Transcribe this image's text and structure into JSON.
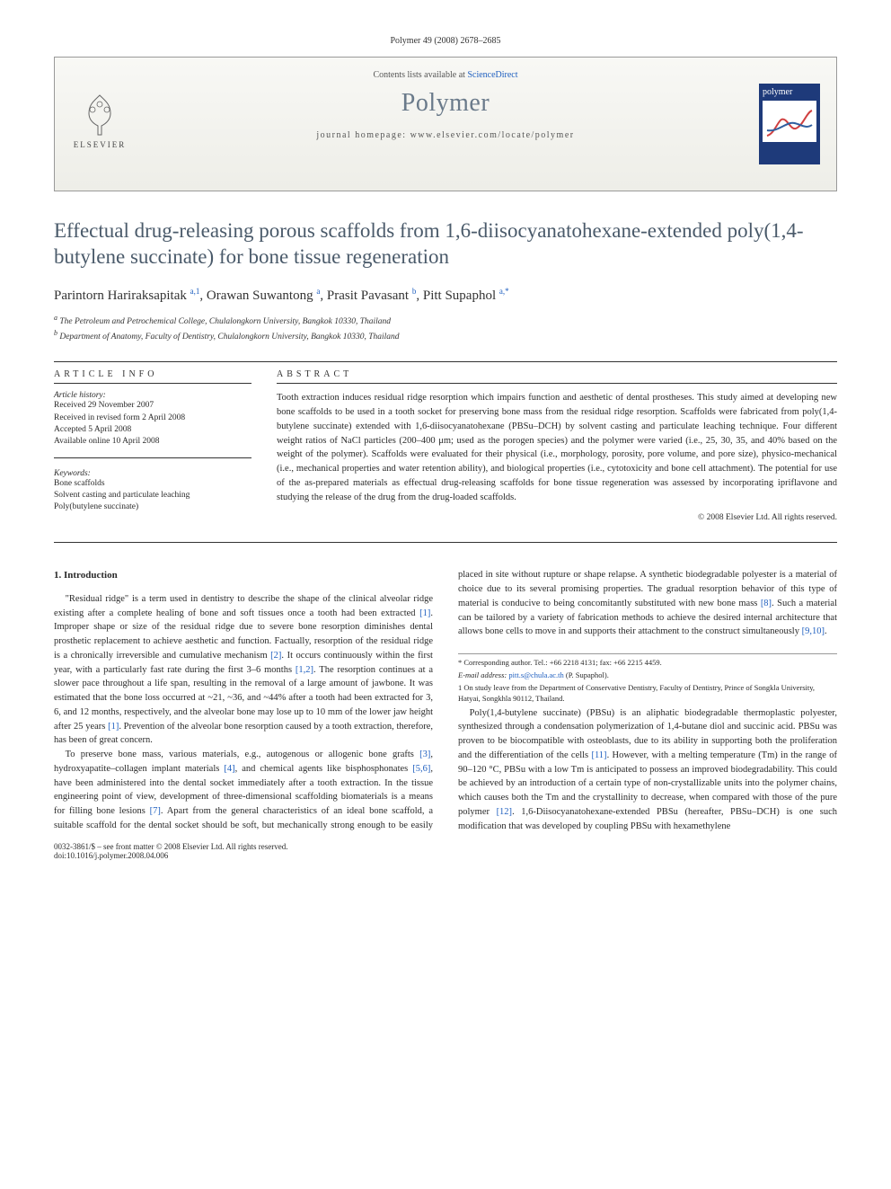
{
  "header": {
    "citation": "Polymer 49 (2008) 2678–2685"
  },
  "banner": {
    "contents_prefix": "Contents lists available at ",
    "contents_link": "ScienceDirect",
    "journal_title": "Polymer",
    "homepage_prefix": "journal homepage: ",
    "homepage_url": "www.elsevier.com/locate/polymer",
    "publisher": "ELSEVIER",
    "cover_label": "polymer"
  },
  "article": {
    "title": "Effectual drug-releasing porous scaffolds from 1,6-diisocyanatohexane-extended poly(1,4-butylene succinate) for bone tissue regeneration",
    "authors_html": "Parintorn Hariraksapitak <sup>a,1</sup>, Orawan Suwantong <sup>a</sup>, Prasit Pavasant <sup>b</sup>, Pitt Supaphol <sup>a,*</sup>",
    "affiliations": {
      "a": "The Petroleum and Petrochemical College, Chulalongkorn University, Bangkok 10330, Thailand",
      "b": "Department of Anatomy, Faculty of Dentistry, Chulalongkorn University, Bangkok 10330, Thailand"
    }
  },
  "meta": {
    "info_head": "ARTICLE INFO",
    "abstract_head": "ABSTRACT",
    "history_label": "Article history:",
    "history": [
      "Received 29 November 2007",
      "Received in revised form 2 April 2008",
      "Accepted 5 April 2008",
      "Available online 10 April 2008"
    ],
    "keywords_label": "Keywords:",
    "keywords": [
      "Bone scaffolds",
      "Solvent casting and particulate leaching",
      "Poly(butylene succinate)"
    ],
    "abstract": "Tooth extraction induces residual ridge resorption which impairs function and aesthetic of dental prostheses. This study aimed at developing new bone scaffolds to be used in a tooth socket for preserving bone mass from the residual ridge resorption. Scaffolds were fabricated from poly(1,4-butylene succinate) extended with 1,6-diisocyanatohexane (PBSu–DCH) by solvent casting and particulate leaching technique. Four different weight ratios of NaCl particles (200–400 μm; used as the porogen species) and the polymer were varied (i.e., 25, 30, 35, and 40% based on the weight of the polymer). Scaffolds were evaluated for their physical (i.e., morphology, porosity, pore volume, and pore size), physico-mechanical (i.e., mechanical properties and water retention ability), and biological properties (i.e., cytotoxicity and bone cell attachment). The potential for use of the as-prepared materials as effectual drug-releasing scaffolds for bone tissue regeneration was assessed by incorporating ipriflavone and studying the release of the drug from the drug-loaded scaffolds.",
    "copyright": "© 2008 Elsevier Ltd. All rights reserved."
  },
  "body": {
    "intro_head": "1. Introduction",
    "p1": "\"Residual ridge\" is a term used in dentistry to describe the shape of the clinical alveolar ridge existing after a complete healing of bone and soft tissues once a tooth had been extracted [1]. Improper shape or size of the residual ridge due to severe bone resorption diminishes dental prosthetic replacement to achieve aesthetic and function. Factually, resorption of the residual ridge is a chronically irreversible and cumulative mechanism [2]. It occurs continuously within the first year, with a particularly fast rate during the first 3–6 months [1,2]. The resorption continues at a slower pace throughout a life span, resulting in the removal of a large amount of jawbone. It was estimated that the bone loss occurred at ~21, ~36, and ~44% after a tooth had been extracted for 3, 6, and 12 months, respectively, and the alveolar bone may lose up to 10 mm of the lower jaw height after 25 years [1]. Prevention of the alveolar bone resorption caused by a tooth extraction, therefore, has been of great concern.",
    "p2": "To preserve bone mass, various materials, e.g., autogenous or allogenic bone grafts [3], hydroxyapatite–collagen implant materials [4], and chemical agents like bisphosphonates [5,6], have been administered into the dental socket immediately after a tooth extraction. In the tissue engineering point of view, development of three-dimensional scaffolding biomaterials is a means for filling bone lesions [7]. Apart from the general characteristics of an ideal bone scaffold, a suitable scaffold for the dental socket should be soft, but mechanically strong enough to be easily placed in site without rupture or shape relapse. A synthetic biodegradable polyester is a material of choice due to its several promising properties. The gradual resorption behavior of this type of material is conducive to being concomitantly substituted with new bone mass [8]. Such a material can be tailored by a variety of fabrication methods to achieve the desired internal architecture that allows bone cells to move in and supports their attachment to the construct simultaneously [9,10].",
    "p3": "Poly(1,4-butylene succinate) (PBSu) is an aliphatic biodegradable thermoplastic polyester, synthesized through a condensation polymerization of 1,4-butane diol and succinic acid. PBSu was proven to be biocompatible with osteoblasts, due to its ability in supporting both the proliferation and the differentiation of the cells [11]. However, with a melting temperature (Tm) in the range of 90–120 °C, PBSu with a low Tm is anticipated to possess an improved biodegradability. This could be achieved by an introduction of a certain type of non-crystallizable units into the polymer chains, which causes both the Tm and the crystallinity to decrease, when compared with those of the pure polymer [12]. 1,6-Diisocyanatohexane-extended PBSu (hereafter, PBSu–DCH) is one such modification that was developed by coupling PBSu with hexamethylene"
  },
  "footnotes": {
    "corr_label": "* Corresponding author. Tel.: +66 2218 4131; fax: +66 2215 4459.",
    "email_label": "E-mail address:",
    "email": "pitt.s@chula.ac.th",
    "email_suffix": "(P. Supaphol).",
    "note1": "1 On study leave from the Department of Conservative Dentistry, Faculty of Dentistry, Prince of Songkla University, Hatyai, Songkhla 90112, Thailand."
  },
  "footer": {
    "left_line1": "0032-3861/$ – see front matter © 2008 Elsevier Ltd. All rights reserved.",
    "left_line2": "doi:10.1016/j.polymer.2008.04.006"
  },
  "colors": {
    "link": "#2060c0",
    "title_gray": "#4a5a6a",
    "banner_title": "#6a7a8a",
    "cover_bg": "#1e3a7a"
  }
}
